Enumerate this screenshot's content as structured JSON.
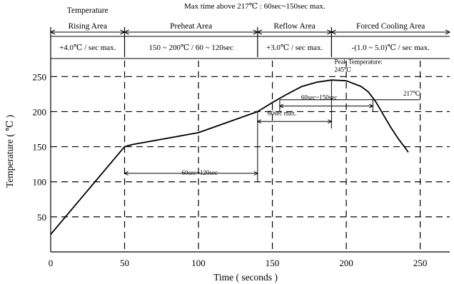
{
  "chart_data": {
    "type": "line",
    "title": "",
    "top_note": "Max time above 217℃ : 60sec~150sec max.",
    "xlabel": "Time ( seconds )",
    "ylabel": "Temperature ( ℃ )",
    "xlim": [
      0,
      270
    ],
    "ylim": [
      0,
      290
    ],
    "xticks": [
      0,
      50,
      100,
      150,
      200,
      250
    ],
    "yticks": [
      50,
      100,
      150,
      200,
      250
    ],
    "grid": true,
    "series": [
      {
        "name": "",
        "points": [
          [
            0,
            25
          ],
          [
            50,
            150
          ],
          [
            55,
            153
          ],
          [
            100,
            170
          ],
          [
            140,
            200
          ],
          [
            150,
            213
          ],
          [
            160,
            225
          ],
          [
            170,
            236
          ],
          [
            180,
            242
          ],
          [
            190,
            245
          ],
          [
            200,
            244
          ],
          [
            210,
            236
          ],
          [
            215,
            228
          ],
          [
            220,
            214
          ],
          [
            225,
            196
          ],
          [
            230,
            178
          ],
          [
            235,
            162
          ],
          [
            240,
            148
          ],
          [
            242,
            142
          ]
        ]
      }
    ],
    "zones": [
      {
        "label": "Temperature\nRising Area",
        "rate": "+4.0℃ / sec max.",
        "x_start": 0,
        "x_end": 50
      },
      {
        "label": "Preheat Area",
        "rate": "150 ~ 200℃ / 60 ~ 120sec",
        "x_start": 50,
        "x_end": 140
      },
      {
        "label": "Reflow Area",
        "rate": "+3.0℃ / sec max.",
        "x_start": 140,
        "x_end": 190
      },
      {
        "label": "Forced Cooling Area",
        "rate": "-(1.0 ~ 5.0)℃ / sec max.",
        "x_start": 190,
        "x_end": 270
      }
    ],
    "annotations": [
      {
        "text": "Peak Temperature:",
        "x": 192,
        "y": 268
      },
      {
        "text": "245℃",
        "x": 192,
        "y": 257
      },
      {
        "text": "217℃",
        "x": 250,
        "y": 223
      },
      {
        "text": "60sec~150sec",
        "x": 155,
        "y": 217
      },
      {
        "text": "60sec max.",
        "x": 140,
        "y": 195
      },
      {
        "text": "60sec~120sec",
        "x": 50,
        "y": 110
      }
    ],
    "dimension_lines": [
      {
        "label": "60sec~150sec",
        "x1": 155,
        "x2": 218,
        "y": 208
      },
      {
        "label": "60sec max.",
        "x1": 140,
        "x2": 190,
        "y": 186
      },
      {
        "label": "60sec~120sec",
        "x1": 50,
        "x2": 140,
        "y": 112
      }
    ],
    "reference_lines": [
      {
        "label": "217℃",
        "y": 217,
        "x1": 155,
        "x2": 250
      }
    ]
  }
}
